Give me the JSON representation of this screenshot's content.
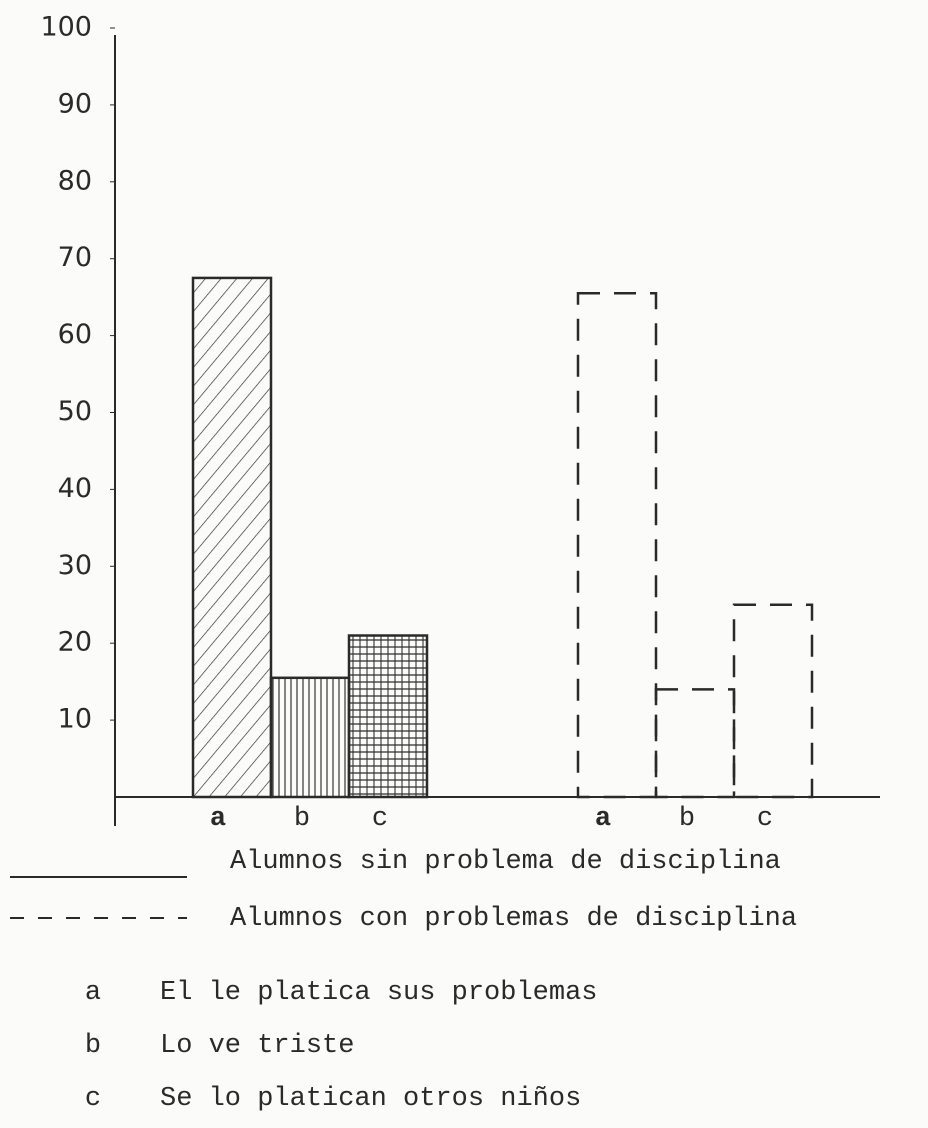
{
  "chart_data": {
    "type": "bar",
    "categories": [
      "a",
      "b",
      "c"
    ],
    "series": [
      {
        "name": "Alumnos sin problema de disciplina",
        "color": "#2a2a2a",
        "line_style": "solid",
        "hatch": [
          "diagonal",
          "vertical",
          "grid"
        ],
        "values": [
          67.5,
          15.5,
          21
        ]
      },
      {
        "name": "Alumnos con problemas de disciplina",
        "color": "#2a2a2a",
        "line_style": "dashed",
        "values": [
          65.5,
          14,
          25
        ]
      }
    ],
    "ylim": [
      0,
      100
    ],
    "yticks": [
      10,
      20,
      30,
      40,
      50,
      60,
      70,
      80,
      90,
      100
    ],
    "key": [
      {
        "letter": "a",
        "text": "El le platica sus problemas"
      },
      {
        "letter": "b",
        "text": "Lo ve triste"
      },
      {
        "letter": "c",
        "text": "Se lo platican otros niños"
      }
    ]
  }
}
